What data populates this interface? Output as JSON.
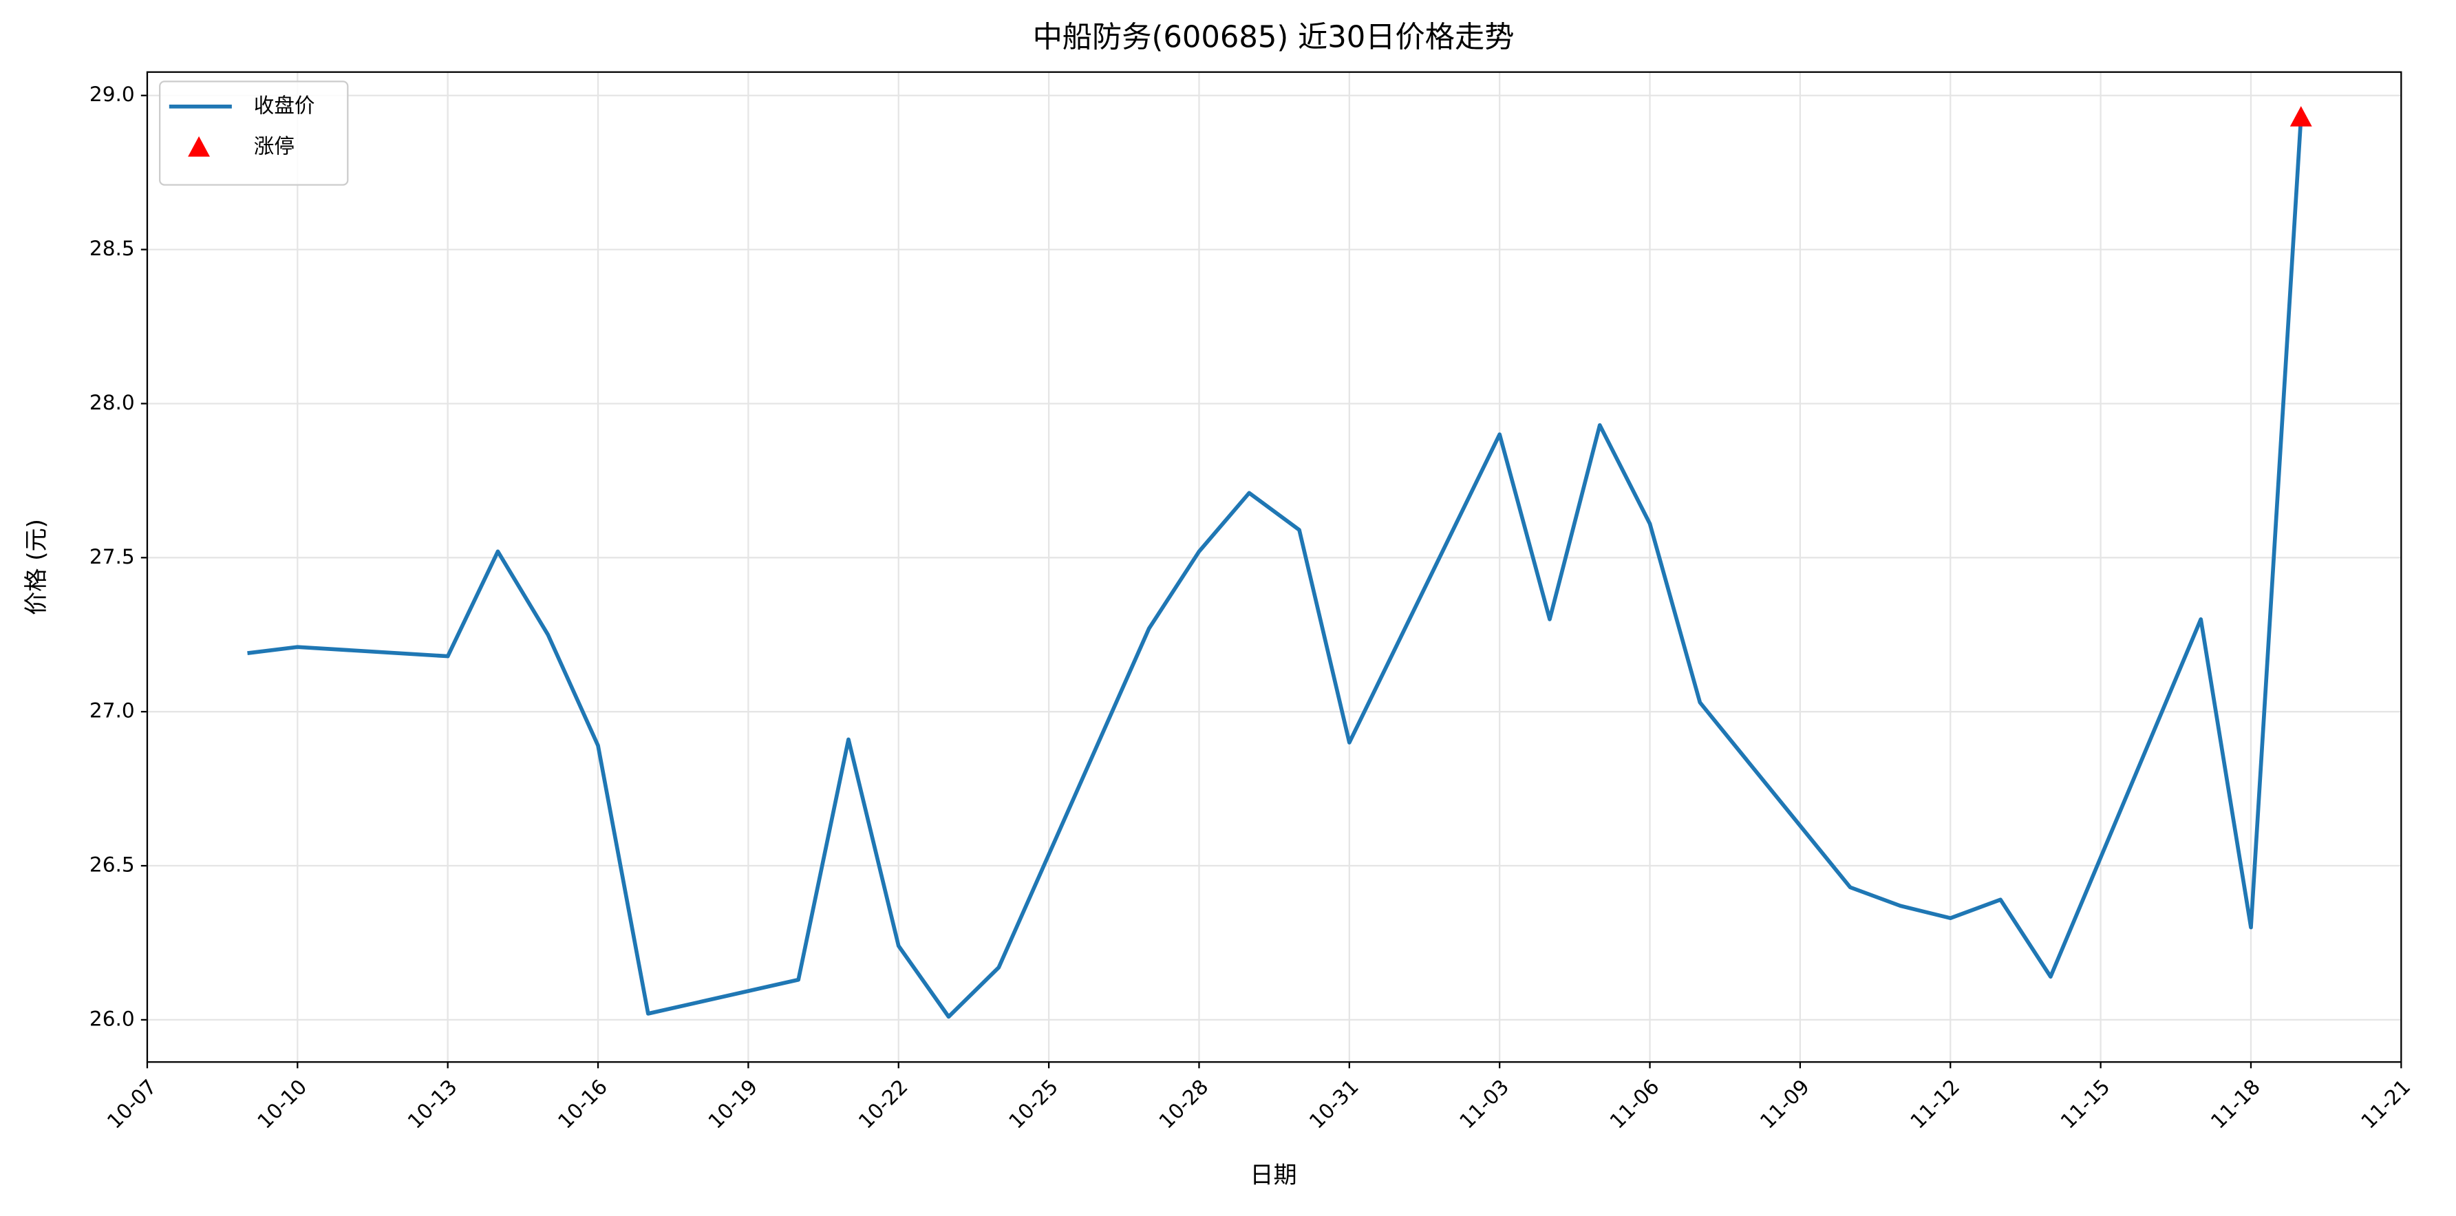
{
  "chart_data": {
    "type": "line",
    "title": "中船防务(600685) 近30日价格走势",
    "x_label": "日期",
    "y_label": "价格 (元)",
    "series": [
      {
        "name": "收盘价",
        "color": "#1f77b4",
        "x": [
          "10-09",
          "10-10",
          "10-13",
          "10-14",
          "10-15",
          "10-16",
          "10-17",
          "10-20",
          "10-21",
          "10-22",
          "10-23",
          "10-24",
          "10-27",
          "10-28",
          "10-29",
          "10-30",
          "10-31",
          "11-03",
          "11-04",
          "11-05",
          "11-06",
          "11-07",
          "11-10",
          "11-11",
          "11-12",
          "11-13",
          "11-14",
          "11-17",
          "11-18",
          "11-19"
        ],
        "values": [
          27.19,
          27.21,
          27.18,
          27.52,
          27.25,
          26.89,
          26.02,
          26.13,
          26.91,
          26.24,
          26.01,
          26.17,
          27.27,
          27.52,
          27.71,
          27.59,
          26.9,
          27.9,
          27.3,
          27.93,
          27.61,
          27.03,
          26.43,
          26.37,
          26.33,
          26.39,
          26.14,
          27.3,
          26.3,
          28.93
        ]
      },
      {
        "name": "涨停",
        "color": "#ff0000",
        "type": "scatter",
        "marker": "triangle",
        "x": [
          "11-19"
        ],
        "values": [
          28.93
        ]
      }
    ],
    "xlim": [
      "10-07",
      "11-21"
    ],
    "xticks": [
      "10-07",
      "10-10",
      "10-13",
      "10-16",
      "10-19",
      "10-22",
      "10-25",
      "10-28",
      "10-31",
      "11-03",
      "11-06",
      "11-09",
      "11-12",
      "11-15",
      "11-18",
      "11-21"
    ],
    "ylim": [
      25.863,
      29.076
    ],
    "yticks": [
      {
        "value": 26,
        "label": "26.0"
      },
      {
        "value": 26.5,
        "label": "26.5"
      },
      {
        "value": 27,
        "label": "27.0"
      },
      {
        "value": 27.5,
        "label": "27.5"
      },
      {
        "value": 28,
        "label": "28.0"
      },
      {
        "value": 28.5,
        "label": "28.5"
      },
      {
        "value": 29,
        "label": "29.0"
      }
    ],
    "grid": true,
    "legend": "upper-left"
  }
}
